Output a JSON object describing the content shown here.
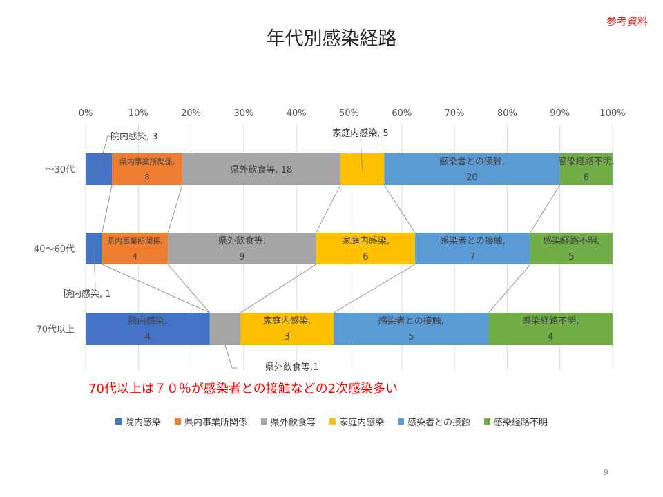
{
  "ref_label": "参考資料",
  "page_number": "9",
  "note": "70代以上は７０％が感染者との接触などの2次感染多い",
  "chart_data": {
    "type": "bar",
    "orientation": "horizontal",
    "stacking": "percent",
    "title": "年代別感染経路",
    "categories": [
      "～30代",
      "40～60代",
      "70代以上"
    ],
    "series": [
      {
        "name": "院内感染",
        "color": "#4472c4",
        "values": [
          3,
          1,
          4
        ]
      },
      {
        "name": "県内事業所関係",
        "color": "#ed7d31",
        "values": [
          8,
          4,
          0
        ]
      },
      {
        "name": "県外飲食等",
        "color": "#a5a5a5",
        "values": [
          18,
          9,
          1
        ]
      },
      {
        "name": "家庭内感染",
        "color": "#ffc000",
        "values": [
          5,
          6,
          3
        ]
      },
      {
        "name": "感染者との接触",
        "color": "#5b9bd5",
        "values": [
          20,
          7,
          5
        ]
      },
      {
        "name": "感染経路不明",
        "color": "#70ad47",
        "values": [
          6,
          5,
          4
        ]
      }
    ],
    "x_ticks": [
      "0%",
      "10%",
      "20%",
      "30%",
      "40%",
      "50%",
      "60%",
      "70%",
      "80%",
      "90%",
      "100%"
    ],
    "xlim": [
      0,
      1
    ],
    "axis_position": "top",
    "grid": true,
    "legend": "bottom",
    "data_labels": [
      {
        "row": 0,
        "series": 0,
        "lines": [
          "院内感染, 3"
        ]
      },
      {
        "row": 0,
        "series": 1,
        "lines": [
          "県内事業所関係,",
          "8"
        ]
      },
      {
        "row": 0,
        "series": 2,
        "lines": [
          "県外飲食等, 18"
        ]
      },
      {
        "row": 0,
        "series": 3,
        "lines": [
          "家庭内感染, 5"
        ]
      },
      {
        "row": 0,
        "series": 4,
        "lines": [
          "感染者との接触,",
          "20"
        ]
      },
      {
        "row": 0,
        "series": 5,
        "lines": [
          "感染経路不明,",
          "6"
        ]
      },
      {
        "row": 1,
        "series": 0,
        "lines": [
          "院内感染, 1"
        ]
      },
      {
        "row": 1,
        "series": 1,
        "lines": [
          "県内事業所関係,",
          "4"
        ]
      },
      {
        "row": 1,
        "series": 2,
        "lines": [
          "県外飲食等,",
          "9"
        ]
      },
      {
        "row": 1,
        "series": 3,
        "lines": [
          "家庭内感染,",
          "6"
        ]
      },
      {
        "row": 1,
        "series": 4,
        "lines": [
          "感染者との接触,",
          "7"
        ]
      },
      {
        "row": 1,
        "series": 5,
        "lines": [
          "感染経路不明,",
          "5"
        ]
      },
      {
        "row": 2,
        "series": 0,
        "lines": [
          "院内感染,",
          "4"
        ]
      },
      {
        "row": 2,
        "series": 2,
        "lines": [
          "県外飲食等,1"
        ]
      },
      {
        "row": 2,
        "series": 3,
        "lines": [
          "家庭内感染,",
          "3"
        ]
      },
      {
        "row": 2,
        "series": 4,
        "lines": [
          "感染者との接触,",
          "5"
        ]
      },
      {
        "row": 2,
        "series": 5,
        "lines": [
          "感染経路不明,",
          "4"
        ]
      }
    ]
  }
}
